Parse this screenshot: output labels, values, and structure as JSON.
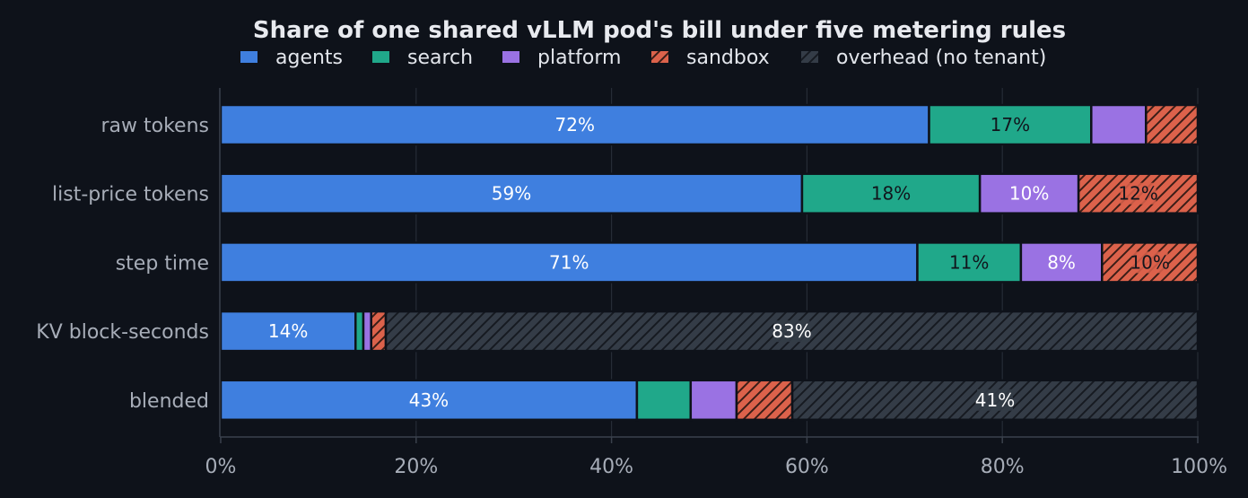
{
  "chart_data": {
    "type": "bar",
    "orientation": "horizontal",
    "stacked": true,
    "title": "Share of one shared vLLM pod's bill under five metering rules",
    "xlabel": "",
    "ylabel": "",
    "xlim": [
      0,
      100
    ],
    "x_ticks": [
      "0%",
      "20%",
      "40%",
      "60%",
      "80%",
      "100%"
    ],
    "grid": "vertical gridlines",
    "legend_position": "top",
    "categories": [
      "raw tokens",
      "list-price tokens",
      "step time",
      "KV block-seconds",
      "blended"
    ],
    "series": [
      {
        "name": "agents",
        "color": "#3f7fdf",
        "pattern": "solid",
        "values": [
          72.5,
          59.5,
          71.3,
          13.8,
          42.6
        ],
        "labels": [
          "72%",
          "59%",
          "71%",
          "14%",
          "43%"
        ]
      },
      {
        "name": "search",
        "color": "#20a88a",
        "pattern": "solid",
        "values": [
          16.6,
          18.2,
          10.6,
          0.8,
          5.5
        ],
        "labels": [
          "17%",
          "18%",
          "11%",
          "",
          ""
        ]
      },
      {
        "name": "platform",
        "color": "#9a72e3",
        "pattern": "solid",
        "values": [
          5.6,
          10.1,
          8.3,
          0.8,
          4.7
        ],
        "labels": [
          "",
          "10%",
          "8%",
          "",
          ""
        ]
      },
      {
        "name": "sandbox",
        "color": "#dc624b",
        "pattern": "hatch",
        "values": [
          5.3,
          12.2,
          9.8,
          1.5,
          5.7
        ],
        "labels": [
          "",
          "12%",
          "10%",
          "",
          ""
        ]
      },
      {
        "name": "overhead (no tenant)",
        "color": "#343c47",
        "pattern": "hatch",
        "values": [
          0,
          0,
          0,
          83.1,
          41.5
        ],
        "labels": [
          "",
          "",
          "",
          "83%",
          "41%"
        ]
      }
    ]
  }
}
